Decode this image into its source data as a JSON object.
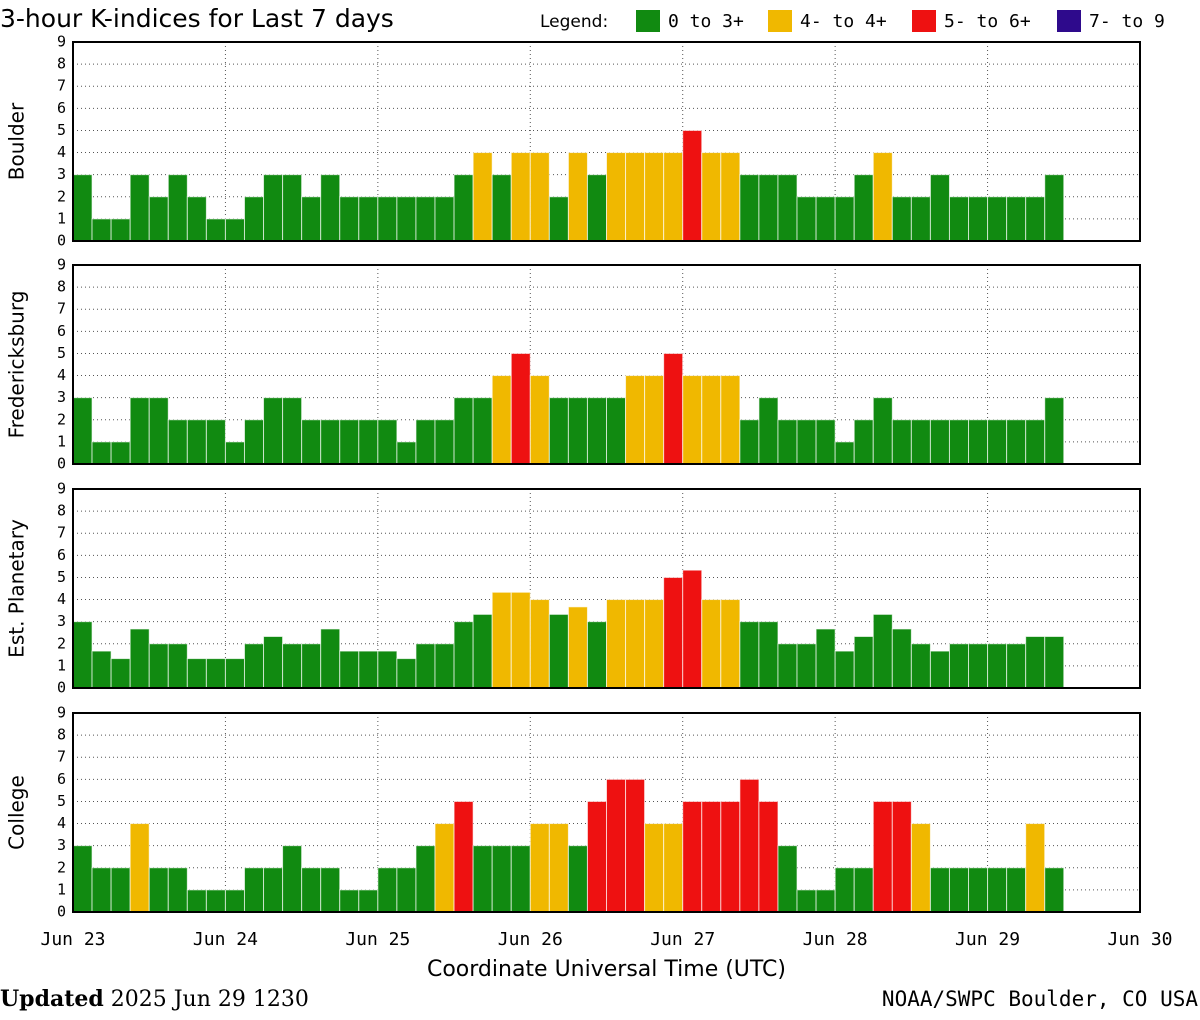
{
  "header": {
    "title": "3-hour K-indices for Last 7 days",
    "legend_label": "Legend:",
    "legend": [
      {
        "name": "0 to 3+",
        "color": "#118a11"
      },
      {
        "name": "4- to 4+",
        "color": "#f0b800"
      },
      {
        "name": "5- to 6+",
        "color": "#ee1111"
      },
      {
        "name": "7- to 9",
        "color": "#2e0a8c"
      }
    ]
  },
  "chart_data": [
    {
      "type": "bar",
      "y_label": "Boulder",
      "ylim": [
        0,
        9
      ],
      "yticks": [
        0,
        1,
        2,
        3,
        4,
        5,
        6,
        7,
        8,
        9
      ],
      "xlim": [
        0,
        56
      ],
      "grid": true,
      "values": [
        3,
        1,
        1,
        3,
        2,
        3,
        2,
        1,
        1,
        2,
        3,
        3,
        2,
        3,
        2,
        2,
        2,
        2,
        2,
        2,
        3,
        4,
        3,
        4,
        4,
        2,
        4,
        3,
        4,
        4,
        4,
        4,
        5,
        4,
        4,
        3,
        3,
        3,
        2,
        2,
        2,
        3,
        4,
        2,
        2,
        3,
        2,
        2,
        2,
        2,
        2,
        3,
        null,
        null,
        null,
        null
      ],
      "colors": [
        "#118a11",
        "#118a11",
        "#118a11",
        "#118a11",
        "#118a11",
        "#118a11",
        "#118a11",
        "#118a11",
        "#118a11",
        "#118a11",
        "#118a11",
        "#118a11",
        "#118a11",
        "#118a11",
        "#118a11",
        "#118a11",
        "#118a11",
        "#118a11",
        "#118a11",
        "#118a11",
        "#118a11",
        "#f0b800",
        "#118a11",
        "#f0b800",
        "#f0b800",
        "#118a11",
        "#f0b800",
        "#118a11",
        "#f0b800",
        "#f0b800",
        "#f0b800",
        "#f0b800",
        "#ee1111",
        "#f0b800",
        "#f0b800",
        "#118a11",
        "#118a11",
        "#118a11",
        "#118a11",
        "#118a11",
        "#118a11",
        "#118a11",
        "#f0b800",
        "#118a11",
        "#118a11",
        "#118a11",
        "#118a11",
        "#118a11",
        "#118a11",
        "#118a11",
        "#118a11",
        "#118a11",
        null,
        null,
        null,
        null
      ]
    },
    {
      "type": "bar",
      "y_label": "Fredericksburg",
      "ylim": [
        0,
        9
      ],
      "yticks": [
        0,
        1,
        2,
        3,
        4,
        5,
        6,
        7,
        8,
        9
      ],
      "xlim": [
        0,
        56
      ],
      "grid": true,
      "values": [
        3,
        1,
        1,
        3,
        3,
        2,
        2,
        2,
        1,
        2,
        3,
        3,
        2,
        2,
        2,
        2,
        2,
        1,
        2,
        2,
        3,
        3,
        4,
        5,
        4,
        3,
        3,
        3,
        3,
        4,
        4,
        5,
        4,
        4,
        4,
        2,
        3,
        2,
        2,
        2,
        1,
        2,
        3,
        2,
        2,
        2,
        2,
        2,
        2,
        2,
        2,
        3,
        null,
        null,
        null,
        null
      ],
      "colors": [
        "#118a11",
        "#118a11",
        "#118a11",
        "#118a11",
        "#118a11",
        "#118a11",
        "#118a11",
        "#118a11",
        "#118a11",
        "#118a11",
        "#118a11",
        "#118a11",
        "#118a11",
        "#118a11",
        "#118a11",
        "#118a11",
        "#118a11",
        "#118a11",
        "#118a11",
        "#118a11",
        "#118a11",
        "#118a11",
        "#f0b800",
        "#ee1111",
        "#f0b800",
        "#118a11",
        "#118a11",
        "#118a11",
        "#118a11",
        "#f0b800",
        "#f0b800",
        "#ee1111",
        "#f0b800",
        "#f0b800",
        "#f0b800",
        "#118a11",
        "#118a11",
        "#118a11",
        "#118a11",
        "#118a11",
        "#118a11",
        "#118a11",
        "#118a11",
        "#118a11",
        "#118a11",
        "#118a11",
        "#118a11",
        "#118a11",
        "#118a11",
        "#118a11",
        "#118a11",
        "#118a11",
        null,
        null,
        null,
        null
      ]
    },
    {
      "type": "bar",
      "y_label": "Est. Planetary",
      "ylim": [
        0,
        9
      ],
      "yticks": [
        0,
        1,
        2,
        3,
        4,
        5,
        6,
        7,
        8,
        9
      ],
      "xlim": [
        0,
        56
      ],
      "grid": true,
      "values": [
        3,
        1.67,
        1.33,
        2.67,
        2,
        2,
        1.33,
        1.33,
        1.33,
        2,
        2.33,
        2,
        2,
        2.67,
        1.67,
        1.67,
        1.67,
        1.33,
        2,
        2,
        3,
        3.33,
        4.33,
        4.33,
        4,
        3.33,
        3.67,
        3,
        4,
        4,
        4,
        5,
        5.33,
        4,
        4,
        3,
        3,
        2,
        2,
        2.67,
        1.67,
        2.33,
        3.33,
        2.67,
        2,
        1.67,
        2,
        2,
        2,
        2,
        2.33,
        2.33,
        null,
        null,
        null,
        null
      ],
      "colors": [
        "#118a11",
        "#118a11",
        "#118a11",
        "#118a11",
        "#118a11",
        "#118a11",
        "#118a11",
        "#118a11",
        "#118a11",
        "#118a11",
        "#118a11",
        "#118a11",
        "#118a11",
        "#118a11",
        "#118a11",
        "#118a11",
        "#118a11",
        "#118a11",
        "#118a11",
        "#118a11",
        "#118a11",
        "#118a11",
        "#f0b800",
        "#f0b800",
        "#f0b800",
        "#118a11",
        "#f0b800",
        "#118a11",
        "#f0b800",
        "#f0b800",
        "#f0b800",
        "#ee1111",
        "#ee1111",
        "#f0b800",
        "#f0b800",
        "#118a11",
        "#118a11",
        "#118a11",
        "#118a11",
        "#118a11",
        "#118a11",
        "#118a11",
        "#118a11",
        "#118a11",
        "#118a11",
        "#118a11",
        "#118a11",
        "#118a11",
        "#118a11",
        "#118a11",
        "#118a11",
        "#118a11",
        null,
        null,
        null,
        null
      ]
    },
    {
      "type": "bar",
      "y_label": "College",
      "ylim": [
        0,
        9
      ],
      "yticks": [
        0,
        1,
        2,
        3,
        4,
        5,
        6,
        7,
        8,
        9
      ],
      "xlim": [
        0,
        56
      ],
      "grid": true,
      "xticks": [
        {
          "value": 0,
          "label": "Jun 23"
        },
        {
          "value": 8,
          "label": "Jun 24"
        },
        {
          "value": 16,
          "label": "Jun 25"
        },
        {
          "value": 24,
          "label": "Jun 26"
        },
        {
          "value": 32,
          "label": "Jun 27"
        },
        {
          "value": 40,
          "label": "Jun 28"
        },
        {
          "value": 48,
          "label": "Jun 29"
        },
        {
          "value": 56,
          "label": "Jun 30"
        }
      ],
      "x_label": "Coordinate Universal Time (UTC)",
      "values": [
        3,
        2,
        2,
        4,
        2,
        2,
        1,
        1,
        1,
        2,
        2,
        3,
        2,
        2,
        1,
        1,
        2,
        2,
        3,
        4,
        5,
        3,
        3,
        3,
        4,
        4,
        3,
        5,
        6,
        6,
        4,
        4,
        5,
        5,
        5,
        6,
        5,
        3,
        1,
        1,
        2,
        2,
        5,
        5,
        4,
        2,
        2,
        2,
        2,
        2,
        4,
        2,
        null,
        null,
        null,
        null
      ],
      "colors": [
        "#118a11",
        "#118a11",
        "#118a11",
        "#f0b800",
        "#118a11",
        "#118a11",
        "#118a11",
        "#118a11",
        "#118a11",
        "#118a11",
        "#118a11",
        "#118a11",
        "#118a11",
        "#118a11",
        "#118a11",
        "#118a11",
        "#118a11",
        "#118a11",
        "#118a11",
        "#f0b800",
        "#ee1111",
        "#118a11",
        "#118a11",
        "#118a11",
        "#f0b800",
        "#f0b800",
        "#118a11",
        "#ee1111",
        "#ee1111",
        "#ee1111",
        "#f0b800",
        "#f0b800",
        "#ee1111",
        "#ee1111",
        "#ee1111",
        "#ee1111",
        "#ee1111",
        "#118a11",
        "#118a11",
        "#118a11",
        "#118a11",
        "#118a11",
        "#ee1111",
        "#ee1111",
        "#f0b800",
        "#118a11",
        "#118a11",
        "#118a11",
        "#118a11",
        "#118a11",
        "#f0b800",
        "#118a11",
        null,
        null,
        null,
        null
      ]
    }
  ],
  "footer": {
    "updated_label": "Updated",
    "updated_time": "2025 Jun 29 1230",
    "source": "NOAA/SWPC Boulder, CO USA"
  }
}
